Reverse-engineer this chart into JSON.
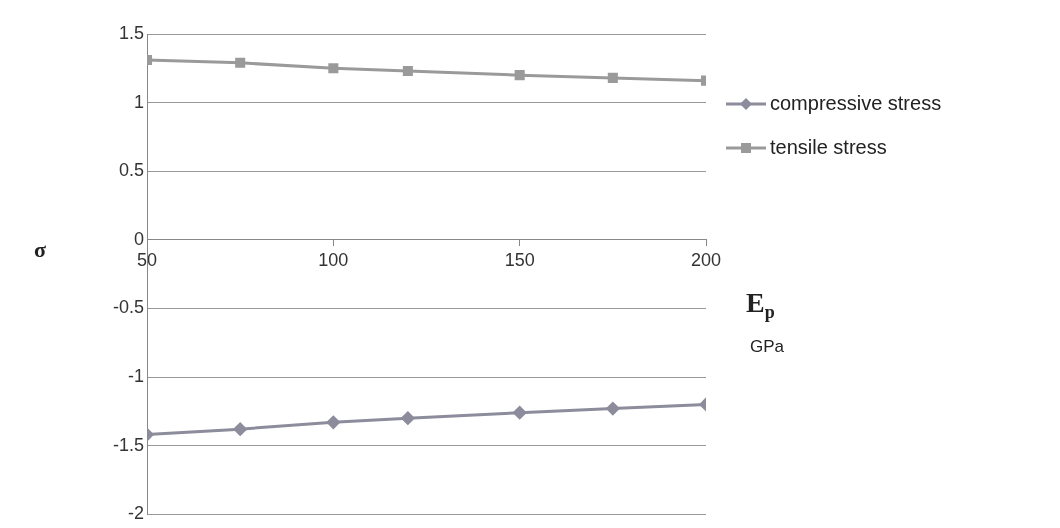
{
  "chart_data": {
    "type": "line",
    "xlabel": "E$_{p}$",
    "ylabel": "σ",
    "annotations": [
      "GPa"
    ],
    "x": [
      50,
      75,
      100,
      120,
      150,
      175,
      200
    ],
    "series": [
      {
        "name": "compressive stress",
        "color": "#8c8c9c",
        "marker": "diamond",
        "values": [
          -1.42,
          -1.38,
          -1.33,
          -1.3,
          -1.26,
          -1.23,
          -1.2
        ]
      },
      {
        "name": "tensile stress",
        "color": "#9a9a9a",
        "marker": "square",
        "values": [
          1.31,
          1.29,
          1.25,
          1.23,
          1.2,
          1.18,
          1.16
        ]
      }
    ],
    "xlim": [
      50,
      200
    ],
    "xticks": [
      50,
      100,
      150,
      200
    ],
    "ylim": [
      -2,
      1.5
    ],
    "yticks": [
      -2,
      -1.5,
      -1,
      -0.5,
      0,
      0.5,
      1,
      1.5
    ],
    "grid": "y",
    "legend": "right",
    "line_style": "solid"
  }
}
